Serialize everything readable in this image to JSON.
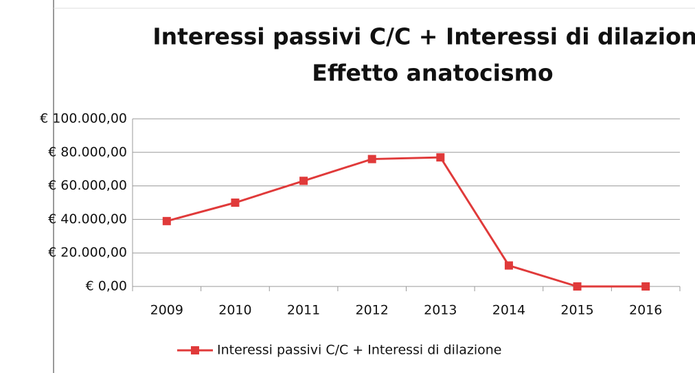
{
  "chart_data": {
    "type": "line",
    "title": "Interessi passivi C/C + Interessi di dilazione",
    "subtitle": "Effetto  anatocismo",
    "categories": [
      "2009",
      "2010",
      "2011",
      "2012",
      "2013",
      "2014",
      "2015",
      "2016"
    ],
    "series": [
      {
        "name": "Interessi passivi C/C + Interessi di dilazione",
        "color": "#e03a3a",
        "values": [
          39000,
          50000,
          63000,
          76000,
          77000,
          12500,
          0,
          0
        ]
      }
    ],
    "ylim": [
      0,
      100000
    ],
    "yticks": [
      {
        "value": 0,
        "label": "€ 0,00"
      },
      {
        "value": 20000,
        "label": "€ 20.000,00"
      },
      {
        "value": 40000,
        "label": "€ 40.000,00"
      },
      {
        "value": 60000,
        "label": "€ 60.000,00"
      },
      {
        "value": 80000,
        "label": "€ 80.000,00"
      },
      {
        "value": 100000,
        "label": "€ 100.000,00"
      }
    ],
    "grid": true,
    "legend": "bottom"
  }
}
